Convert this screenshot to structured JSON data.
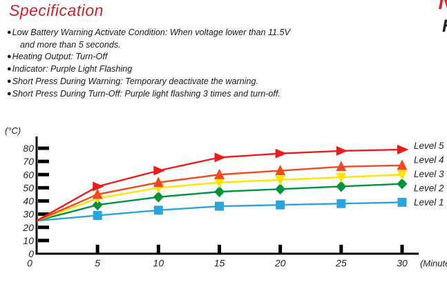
{
  "page": {
    "title": "Specification",
    "edge_fragment_top": "N",
    "edge_fragment_bottom": "H"
  },
  "spec_list": {
    "items": [
      {
        "bullet": "●",
        "indent": false,
        "text": "Low Battery Warning Activate Condition: When voltage lower than 11.5V"
      },
      {
        "bullet": "",
        "indent": true,
        "text": "and more than 5 seconds."
      },
      {
        "bullet": "●",
        "indent": false,
        "text": "Heating Output: Turn-Off"
      },
      {
        "bullet": "●",
        "indent": false,
        "text": "Indicator: Purple Light Flashing"
      },
      {
        "bullet": "●",
        "indent": false,
        "text": "Short Press During Warning: Temporary deactivate the warning."
      },
      {
        "bullet": "●",
        "indent": false,
        "text": "Short Press During Turn-Off: Purple light flashing 3 times and turn-off."
      }
    ]
  },
  "chart_data": {
    "type": "line",
    "title": "",
    "ylabel": "(°C)",
    "xlabel": "(Minutes)",
    "x": [
      0,
      5,
      10,
      15,
      20,
      25,
      30
    ],
    "x_ticks": [
      0,
      5,
      10,
      15,
      20,
      25,
      30
    ],
    "y_ticks": [
      0,
      10,
      20,
      30,
      40,
      50,
      60,
      70,
      80
    ],
    "xlim": [
      0,
      31
    ],
    "ylim": [
      0,
      88
    ],
    "grid": false,
    "legend_position": "right",
    "axis_color": "#000000",
    "text_color": "#231f20",
    "series": [
      {
        "name": "Level 5",
        "marker": "triangle-right",
        "color": "#ed1c1c",
        "values": [
          25,
          51,
          63,
          73,
          76,
          78,
          79
        ]
      },
      {
        "name": "Level 4",
        "marker": "triangle-up",
        "color": "#f04923",
        "values": [
          25,
          45,
          54,
          60,
          63,
          66,
          67
        ]
      },
      {
        "name": "Level 3",
        "marker": "triangle-down",
        "color": "#ffe400",
        "values": [
          25,
          42,
          50,
          54,
          56,
          58,
          60
        ]
      },
      {
        "name": "Level 2",
        "marker": "diamond",
        "color": "#00923f",
        "values": [
          25,
          37,
          43,
          47,
          49,
          51,
          53
        ]
      },
      {
        "name": "Level 1",
        "marker": "square",
        "color": "#29a5db",
        "values": [
          25,
          29,
          33,
          36,
          37,
          38,
          39
        ]
      }
    ]
  }
}
